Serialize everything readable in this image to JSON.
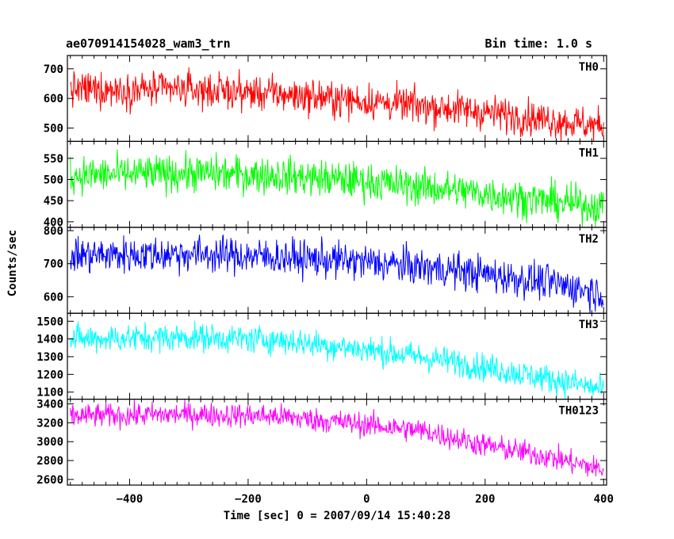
{
  "header": {
    "left": "ae070914154028_wam3_trn",
    "right": "Bin time: 1.0 s"
  },
  "chart_data": {
    "type": "line",
    "title": "ae070914154028_wam3_trn",
    "subtitle": "Bin time: 1.0 s",
    "xlabel": "Time [sec] 0 = 2007/09/14 15:40:28",
    "ylabel": "Counts/sec",
    "xlim": [
      -505,
      405
    ],
    "x_ticks": [
      -400,
      -200,
      0,
      200,
      400
    ],
    "x_tick_labels": [
      "−400",
      "−200",
      "0",
      "200",
      "400"
    ],
    "x_sampling": {
      "start": -500,
      "end": 400,
      "step": 1
    },
    "grid": false,
    "series": [
      {
        "name": "TH0",
        "color": "#ff0000",
        "ylim": [
          455,
          745
        ],
        "ticks": [
          500,
          600,
          700
        ],
        "trend": [
          [
            -500,
            630
          ],
          [
            -300,
            630
          ],
          [
            -150,
            615
          ],
          [
            0,
            590
          ],
          [
            150,
            565
          ],
          [
            300,
            530
          ],
          [
            400,
            505
          ]
        ],
        "noise": 30
      },
      {
        "name": "TH1",
        "color": "#00ff00",
        "ylim": [
          387,
          590
        ],
        "ticks": [
          400,
          450,
          500,
          550
        ],
        "trend": [
          [
            -500,
            510
          ],
          [
            -300,
            515
          ],
          [
            -150,
            510
          ],
          [
            0,
            495
          ],
          [
            150,
            475
          ],
          [
            300,
            450
          ],
          [
            400,
            435
          ]
        ],
        "noise": 22
      },
      {
        "name": "TH2",
        "color": "#0000ff",
        "ylim": [
          550,
          810
        ],
        "ticks": [
          600,
          700,
          800
        ],
        "trend": [
          [
            -500,
            725
          ],
          [
            -300,
            730
          ],
          [
            -150,
            720
          ],
          [
            0,
            705
          ],
          [
            150,
            680
          ],
          [
            300,
            645
          ],
          [
            400,
            610
          ]
        ],
        "noise": 28
      },
      {
        "name": "TH3",
        "color": "#00ffff",
        "ylim": [
          1060,
          1545
        ],
        "ticks": [
          1100,
          1200,
          1300,
          1400,
          1500
        ],
        "trend": [
          [
            -500,
            1400
          ],
          [
            -300,
            1410
          ],
          [
            -150,
            1395
          ],
          [
            0,
            1340
          ],
          [
            150,
            1270
          ],
          [
            250,
            1210
          ],
          [
            350,
            1150
          ],
          [
            400,
            1110
          ]
        ],
        "noise": 40
      },
      {
        "name": "TH0123",
        "color": "#ff00ff",
        "ylim": [
          2540,
          3450
        ],
        "ticks": [
          2600,
          2800,
          3000,
          3200,
          3400
        ],
        "trend": [
          [
            -500,
            3270
          ],
          [
            -300,
            3290
          ],
          [
            -150,
            3270
          ],
          [
            0,
            3180
          ],
          [
            100,
            3110
          ],
          [
            200,
            2960
          ],
          [
            300,
            2850
          ],
          [
            400,
            2700
          ]
        ],
        "noise": 65
      }
    ]
  }
}
